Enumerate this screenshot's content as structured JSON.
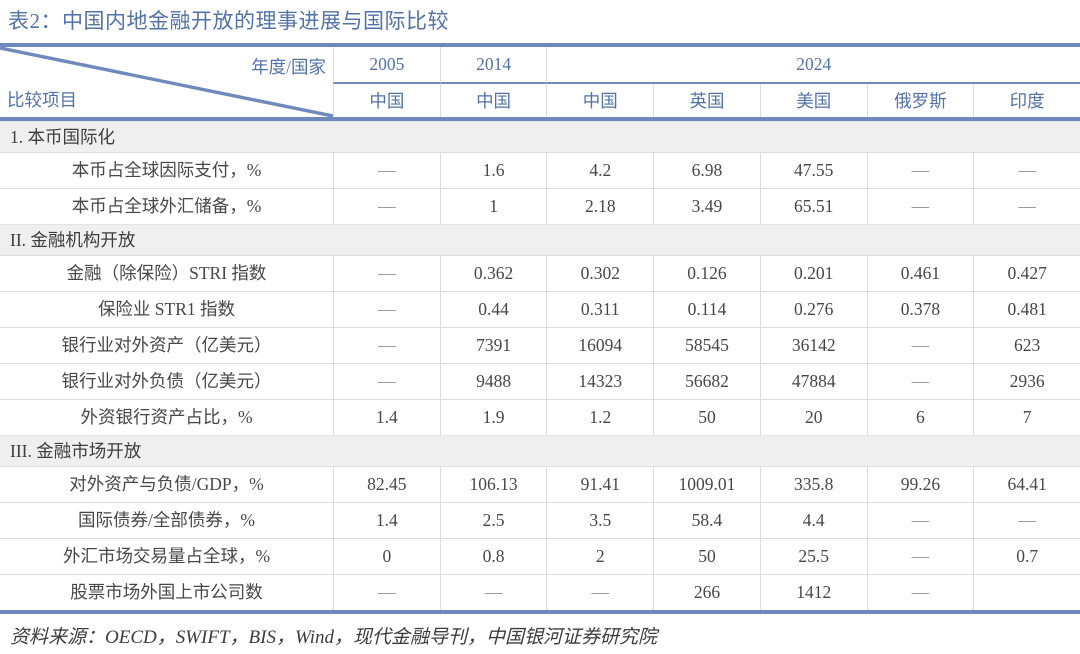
{
  "chart_data": {
    "type": "table",
    "title": "表2：中国内地金融开放的理事进展与国际比较",
    "header": {
      "corner_top_right": "年度/国家",
      "corner_bottom_left": "比较项目",
      "years": [
        {
          "label": "2005",
          "span": 1
        },
        {
          "label": "2014",
          "span": 1
        },
        {
          "label": "2024",
          "span": 5
        }
      ],
      "countries": [
        "中国",
        "中国",
        "中国",
        "英国",
        "美国",
        "俄罗斯",
        "印度"
      ]
    },
    "sections": [
      {
        "label": "1. 本币国际化",
        "rows": [
          {
            "label": "本币占全球因际支付，%",
            "values": [
              "—",
              "1.6",
              "4.2",
              "6.98",
              "47.55",
              "—",
              "—"
            ]
          },
          {
            "label": "本币占全球外汇储备，%",
            "values": [
              "—",
              "1",
              "2.18",
              "3.49",
              "65.51",
              "—",
              "—"
            ]
          }
        ]
      },
      {
        "label": "II. 金融机构开放",
        "rows": [
          {
            "label": "金融（除保险）STRI 指数",
            "values": [
              "—",
              "0.362",
              "0.302",
              "0.126",
              "0.201",
              "0.461",
              "0.427"
            ]
          },
          {
            "label": "保险业 STR1 指数",
            "values": [
              "—",
              "0.44",
              "0.311",
              "0.114",
              "0.276",
              "0.378",
              "0.481"
            ]
          },
          {
            "label": "银行业对外资产（亿美元）",
            "values": [
              "—",
              "7391",
              "16094",
              "58545",
              "36142",
              "—",
              "623"
            ]
          },
          {
            "label": "银行业对外负债（亿美元）",
            "values": [
              "—",
              "9488",
              "14323",
              "56682",
              "47884",
              "—",
              "2936"
            ]
          },
          {
            "label": "外资银行资产占比，%",
            "values": [
              "1.4",
              "1.9",
              "1.2",
              "50",
              "20",
              "6",
              "7"
            ]
          }
        ]
      },
      {
        "label": "III. 金融市场开放",
        "rows": [
          {
            "label": "对外资产与负债/GDP，%",
            "values": [
              "82.45",
              "106.13",
              "91.41",
              "1009.01",
              "335.8",
              "99.26",
              "64.41"
            ]
          },
          {
            "label": "国际债券/全部债券，%",
            "values": [
              "1.4",
              "2.5",
              "3.5",
              "58.4",
              "4.4",
              "—",
              "—"
            ]
          },
          {
            "label": "外汇市场交易量占全球，%",
            "values": [
              "0",
              "0.8",
              "2",
              "50",
              "25.5",
              "—",
              "0.7"
            ]
          },
          {
            "label": "股票市场外国上市公司数",
            "values": [
              "—",
              "—",
              "—",
              "266",
              "1412",
              "—",
              ""
            ]
          }
        ]
      }
    ],
    "source": "资料来源：OECD，SWIFT，BIS，Wind，现代金融导刊，中国银河证券研究院",
    "colors": {
      "accent_blue": "#5272a9",
      "border_blue": "#7089bc",
      "band_gray": "#efefef",
      "grid_gray": "#dcdcdc",
      "text_dark": "#474747"
    }
  }
}
